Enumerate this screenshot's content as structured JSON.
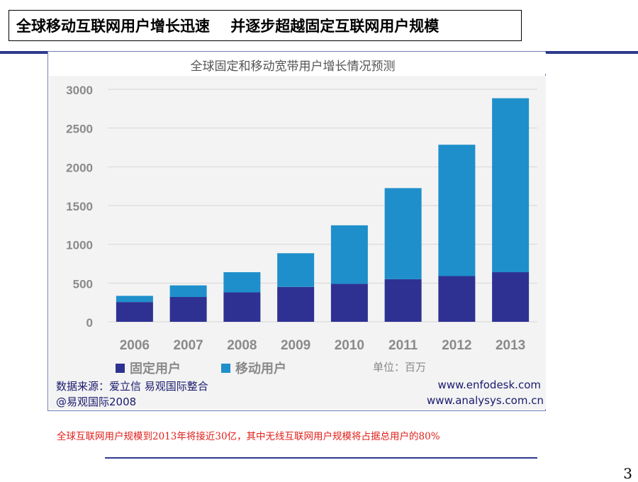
{
  "slide": {
    "title": "全球移动互联网用户增长迅速    并逐步超越固定互联网用户规模",
    "note": "全球互联网用户规模到2013年将接近30亿，其中无线互联网用户规模将占据总用户的80%",
    "page_number": "3"
  },
  "source": {
    "line1": "数据来源：爱立信 易观国际整合",
    "line2": "@易观国际2008",
    "url1": "www.enfodesk.com",
    "url2": "www.analysys.com.cn"
  },
  "colors": {
    "fixed": "#2e3192",
    "mobile": "#1f8fcb",
    "title_rule": "#2d3a8c",
    "note": "#e0201b"
  },
  "chart_data": {
    "type": "bar",
    "stacked": true,
    "title": "全球固定和移动宽带用户增长情况预测",
    "unit_label": "单位：百万",
    "categories": [
      "2006",
      "2007",
      "2008",
      "2009",
      "2010",
      "2011",
      "2012",
      "2013"
    ],
    "series": [
      {
        "name": "固定用户",
        "color": "#2e3192",
        "values": [
          255,
          320,
          380,
          450,
          490,
          550,
          590,
          640
        ]
      },
      {
        "name": "移动用户",
        "color": "#1f8fcb",
        "values": [
          80,
          150,
          260,
          435,
          755,
          1175,
          1695,
          2245
        ]
      }
    ],
    "ylim": [
      0,
      3000
    ],
    "yticks": [
      "0",
      "500",
      "1000",
      "1500",
      "2000",
      "2500",
      "3000"
    ],
    "grid": true,
    "legend": "bottom-left"
  }
}
